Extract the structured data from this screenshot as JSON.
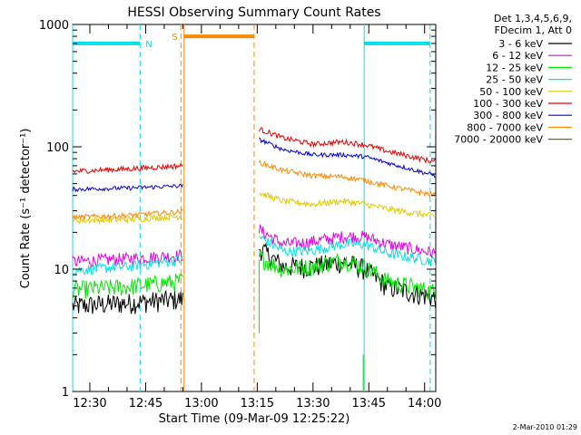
{
  "chart_data": {
    "type": "line",
    "title": "HESSI Observing Summary Count Rates",
    "xlabel": "Start Time (09-Mar-09 12:25:22)",
    "ylabel": "Count Rate (s⁻¹ detector⁻¹)",
    "y_scale": "log",
    "ylim": [
      1,
      1000
    ],
    "y_ticks": [
      {
        "value": 1,
        "label": "1"
      },
      {
        "value": 10,
        "label": "10"
      },
      {
        "value": 100,
        "label": "100"
      },
      {
        "value": 1000,
        "label": "1000"
      }
    ],
    "xlim": [
      "12:25:22",
      "14:03:00"
    ],
    "x_ticks": [
      "12:30",
      "12:45",
      "13:00",
      "13:15",
      "13:30",
      "13:45",
      "14:00"
    ],
    "legend_header": [
      "Det 1,3,4,5,6,9,",
      "FDecim 1, Att 0"
    ],
    "legend_position": "right",
    "gaps": [
      [
        "12:55:00",
        "13:15:30"
      ]
    ],
    "series": [
      {
        "name": "3 - 6 keV",
        "color": "#000000",
        "pre": [
          [
            "12:25:22",
            5.0
          ],
          [
            "12:40:00",
            5.3
          ],
          [
            "12:55:00",
            5.7
          ]
        ],
        "post": [
          [
            "13:15:30",
            15.0
          ],
          [
            "13:22:00",
            10.5
          ],
          [
            "13:30:00",
            10.5
          ],
          [
            "13:38:00",
            11.5
          ],
          [
            "13:44:00",
            10.0
          ],
          [
            "13:50:00",
            7.2
          ],
          [
            "14:03:00",
            5.8
          ]
        ]
      },
      {
        "name": "6 - 12 keV",
        "color": "#e800e8",
        "pre": [
          [
            "12:25:22",
            11.5
          ],
          [
            "12:40:00",
            12.2
          ],
          [
            "12:55:00",
            13.0
          ]
        ],
        "post": [
          [
            "13:15:30",
            21.0
          ],
          [
            "13:22:00",
            16.0
          ],
          [
            "13:28:00",
            16.5
          ],
          [
            "13:38:00",
            18.5
          ],
          [
            "13:44:00",
            18.5
          ],
          [
            "13:50:00",
            16.0
          ],
          [
            "14:03:00",
            13.5
          ]
        ]
      },
      {
        "name": "12 - 25 keV",
        "color": "#00e800",
        "pre": [
          [
            "12:25:22",
            6.8
          ],
          [
            "12:40:00",
            7.2
          ],
          [
            "12:55:00",
            8.0
          ]
        ],
        "post": [
          [
            "13:15:30",
            12.5
          ],
          [
            "13:22:00",
            10.0
          ],
          [
            "13:30:00",
            10.5
          ],
          [
            "13:38:00",
            12.0
          ],
          [
            "13:44:00",
            10.5
          ],
          [
            "13:50:00",
            8.0
          ],
          [
            "14:03:00",
            6.5
          ]
        ]
      },
      {
        "name": "25 - 50 keV",
        "color": "#00e0e8",
        "pre": [
          [
            "12:25:22",
            9.8
          ],
          [
            "12:40:00",
            10.5
          ],
          [
            "12:55:00",
            12.0
          ]
        ],
        "post": [
          [
            "13:15:30",
            18.5
          ],
          [
            "13:22:00",
            14.0
          ],
          [
            "13:28:00",
            14.0
          ],
          [
            "13:38:00",
            16.0
          ],
          [
            "13:44:00",
            16.0
          ],
          [
            "13:50:00",
            13.5
          ],
          [
            "14:03:00",
            11.5
          ]
        ]
      },
      {
        "name": "50 - 100 keV",
        "color": "#e0c800",
        "pre": [
          [
            "12:25:22",
            25.0
          ],
          [
            "12:40:00",
            25.5
          ],
          [
            "12:55:00",
            27.0
          ]
        ],
        "post": [
          [
            "13:15:30",
            42.0
          ],
          [
            "13:22:00",
            36.0
          ],
          [
            "13:30:00",
            34.0
          ],
          [
            "13:38:00",
            36.0
          ],
          [
            "13:44:00",
            34.0
          ],
          [
            "13:50:00",
            31.0
          ],
          [
            "14:03:00",
            27.0
          ]
        ]
      },
      {
        "name": "100 - 300 keV",
        "color": "#e80000",
        "pre": [
          [
            "12:25:22",
            63.0
          ],
          [
            "12:40:00",
            66.0
          ],
          [
            "12:55:00",
            70.0
          ]
        ],
        "post": [
          [
            "13:15:30",
            140.0
          ],
          [
            "13:22:00",
            118.0
          ],
          [
            "13:30:00",
            105.0
          ],
          [
            "13:38:00",
            110.0
          ],
          [
            "13:44:00",
            104.0
          ],
          [
            "13:50:00",
            92.0
          ],
          [
            "14:03:00",
            75.0
          ]
        ]
      },
      {
        "name": "300 - 800 keV",
        "color": "#0000e8",
        "pre": [
          [
            "12:25:22",
            45.0
          ],
          [
            "12:40:00",
            46.0
          ],
          [
            "12:55:00",
            48.0
          ]
        ],
        "post": [
          [
            "13:15:30",
            115.0
          ],
          [
            "13:22:00",
            95.0
          ],
          [
            "13:30:00",
            86.0
          ],
          [
            "13:38:00",
            86.0
          ],
          [
            "13:44:00",
            83.0
          ],
          [
            "13:50:00",
            74.0
          ],
          [
            "14:03:00",
            58.0
          ]
        ]
      },
      {
        "name": "800 - 7000 keV",
        "color": "#ff8800",
        "pre": [
          [
            "12:25:22",
            26.5
          ],
          [
            "12:40:00",
            27.5
          ],
          [
            "12:55:00",
            29.5
          ]
        ],
        "post": [
          [
            "13:15:30",
            75.0
          ],
          [
            "13:22:00",
            64.0
          ],
          [
            "13:30:00",
            58.0
          ],
          [
            "13:38:00",
            57.0
          ],
          [
            "13:44:00",
            53.0
          ],
          [
            "13:50:00",
            48.0
          ],
          [
            "14:03:00",
            40.0
          ]
        ]
      },
      {
        "name": "7000 - 20000 keV",
        "color": "#886600",
        "pre": [],
        "post": []
      }
    ],
    "flags": [
      {
        "label": "N",
        "color": "#00e0e8",
        "level": 700,
        "intervals": [
          [
            "12:25:22",
            "12:43:30"
          ],
          [
            "13:43:45",
            "14:01:30"
          ]
        ],
        "markers": [
          "12:43:30",
          "14:01:30"
        ]
      },
      {
        "label": "S",
        "color": "#ff8800",
        "level": 800,
        "intervals": [
          [
            "12:55:20",
            "13:14:10"
          ]
        ],
        "markers": [
          "12:54:30",
          "13:14:10"
        ]
      }
    ],
    "spikes": [
      {
        "color": "#00e800",
        "time": "13:15:30",
        "from": 3,
        "to": 12
      },
      {
        "color": "#00e800",
        "time": "13:43:30",
        "from": 1,
        "to": 2
      }
    ]
  },
  "footer": {
    "timestamp": "2-Mar-2010 01:29"
  }
}
